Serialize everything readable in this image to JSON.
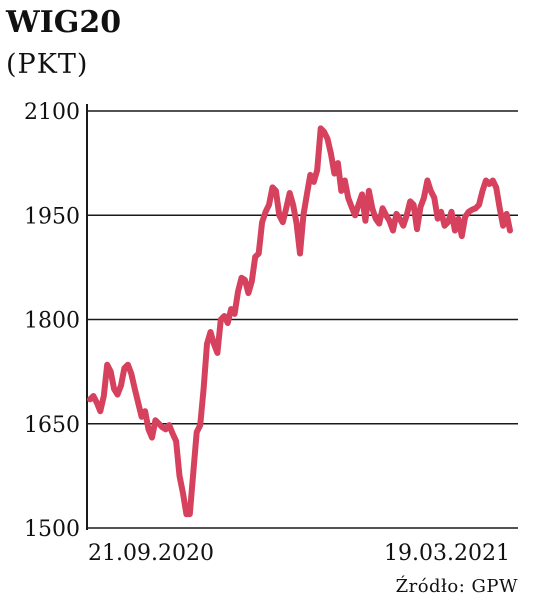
{
  "chart_data": {
    "type": "line",
    "title": "WIG20",
    "subtitle": "(PKT)",
    "source": "Źródło: GPW",
    "ylim": [
      1500,
      2100
    ],
    "yticks": [
      1500,
      1650,
      1800,
      1950,
      2100
    ],
    "ytick_labels": [
      "1500",
      "1650",
      "1800",
      "1950",
      "2100"
    ],
    "xtick_labels": [
      "21.09.2020",
      "19.03.2021"
    ],
    "grid": true,
    "color": "#d6415e",
    "series": [
      {
        "values": [
          1685,
          1690,
          1680,
          1668,
          1690,
          1735,
          1725,
          1700,
          1692,
          1705,
          1730,
          1735,
          1722,
          1700,
          1680,
          1660,
          1668,
          1642,
          1630,
          1655,
          1650,
          1645,
          1642,
          1648,
          1636,
          1625,
          1575,
          1550,
          1520,
          1520,
          1580,
          1638,
          1648,
          1700,
          1765,
          1782,
          1765,
          1752,
          1800,
          1805,
          1795,
          1815,
          1808,
          1840,
          1860,
          1857,
          1838,
          1855,
          1890,
          1895,
          1940,
          1955,
          1965,
          1990,
          1985,
          1950,
          1940,
          1960,
          1982,
          1965,
          1938,
          1895,
          1950,
          1980,
          2008,
          1998,
          2015,
          2075,
          2070,
          2060,
          2038,
          2010,
          2025,
          1985,
          2000,
          1975,
          1962,
          1950,
          1965,
          1980,
          1942,
          1985,
          1960,
          1945,
          1938,
          1960,
          1950,
          1942,
          1928,
          1952,
          1945,
          1935,
          1950,
          1970,
          1965,
          1930,
          1962,
          1975,
          2000,
          1985,
          1975,
          1945,
          1955,
          1935,
          1940,
          1955,
          1928,
          1945,
          1920,
          1948,
          1955,
          1958,
          1960,
          1965,
          1985,
          2000,
          1995,
          2000,
          1990,
          1960,
          1935,
          1952,
          1928
        ]
      }
    ]
  }
}
